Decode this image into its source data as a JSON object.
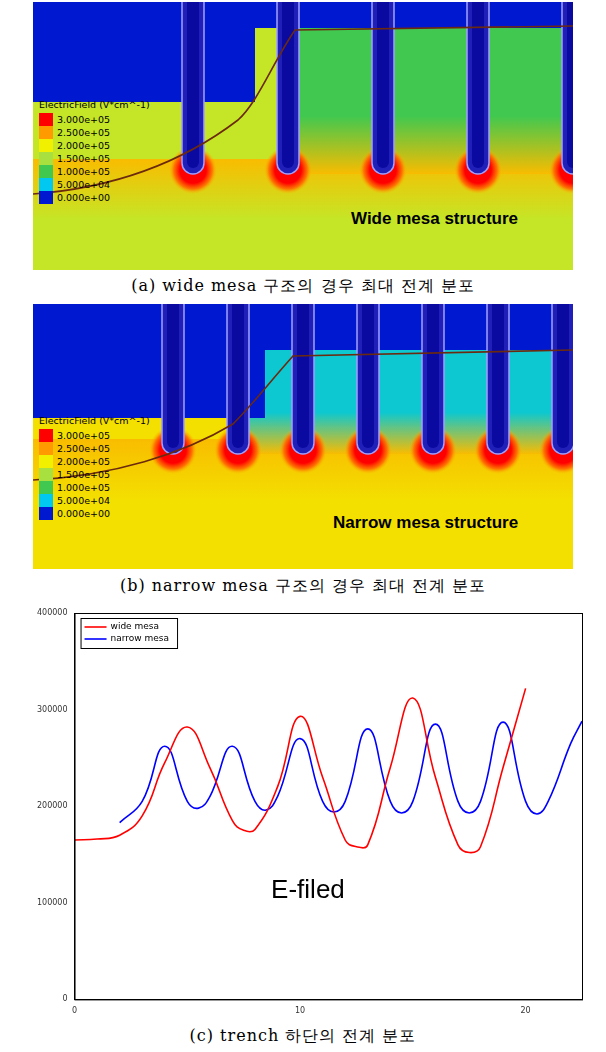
{
  "colorbar": {
    "title": "ElectricField (V*cm^-1)",
    "ticks": [
      {
        "value": 300000,
        "label": "3.000e+05"
      },
      {
        "value": 250000,
        "label": "2.500e+05"
      },
      {
        "value": 200000,
        "label": "2.000e+05"
      },
      {
        "value": 150000,
        "label": "1.500e+05"
      },
      {
        "value": 100000,
        "label": "1.000e+05"
      },
      {
        "value": 50000,
        "label": "5.000e+04"
      },
      {
        "value": 0,
        "label": "0.000e+00"
      }
    ],
    "colors": [
      "#ff0000",
      "#ff9a00",
      "#f0f000",
      "#a8e040",
      "#40c850",
      "#00c8f0",
      "#0018d0"
    ]
  },
  "panels": [
    {
      "label": "Wide mesa structure",
      "caption": "(a) wide mesa 구조의 경우 최대 전계 분포",
      "trenches": 5,
      "fields": {
        "top": 0,
        "mesa": 100000,
        "band": 230000,
        "bulk": 170000,
        "tip": 300000
      }
    },
    {
      "label": "Narrow mesa structure",
      "caption": "(b) narrow mesa 구조의 경우 최대 전계 분포",
      "trenches": 7,
      "fields": {
        "top": 0,
        "mesa": 60000,
        "band": 230000,
        "bulk": 210000,
        "tip": 300000
      }
    }
  ],
  "chart_data": {
    "type": "line",
    "caption": "(c) trench 하단의 전계 분포",
    "annotation": "E-filed",
    "legend": "top-left",
    "grid": false,
    "xlim": [
      0,
      22.5
    ],
    "xticks": [
      0,
      10,
      20
    ],
    "ylim": [
      0,
      400000
    ],
    "yticks": [
      0,
      100000,
      200000,
      300000,
      400000
    ],
    "series": [
      {
        "name": "wide mesa",
        "color": "#ff0000",
        "x": [
          0,
          1,
          2,
          3,
          4,
          5,
          6,
          7,
          7.5,
          8,
          9,
          10,
          11,
          12,
          12.5,
          13,
          14,
          15,
          16,
          17,
          17.5,
          18,
          19,
          20
        ],
        "values": [
          165000,
          166000,
          170000,
          190000,
          245000,
          282000,
          240000,
          185000,
          175000,
          176000,
          220000,
          293000,
          230000,
          165000,
          158000,
          160000,
          240000,
          312000,
          230000,
          160000,
          152000,
          158000,
          240000,
          322000
        ]
      },
      {
        "name": "narrow mesa",
        "color": "#0000ff",
        "x": [
          2,
          3,
          4,
          5,
          5.5,
          6,
          7,
          8,
          8.5,
          9,
          10,
          11,
          11.5,
          12,
          13,
          14,
          14.5,
          15,
          16,
          17,
          17.5,
          18,
          19,
          20,
          20.5,
          21,
          22,
          22.5
        ],
        "values": [
          183000,
          205000,
          262000,
          205000,
          198000,
          210000,
          262000,
          205000,
          196000,
          210000,
          270000,
          205000,
          194000,
          205000,
          280000,
          205000,
          193000,
          205000,
          285000,
          205000,
          193000,
          205000,
          287000,
          205000,
          192000,
          205000,
          265000,
          288000
        ]
      }
    ]
  }
}
